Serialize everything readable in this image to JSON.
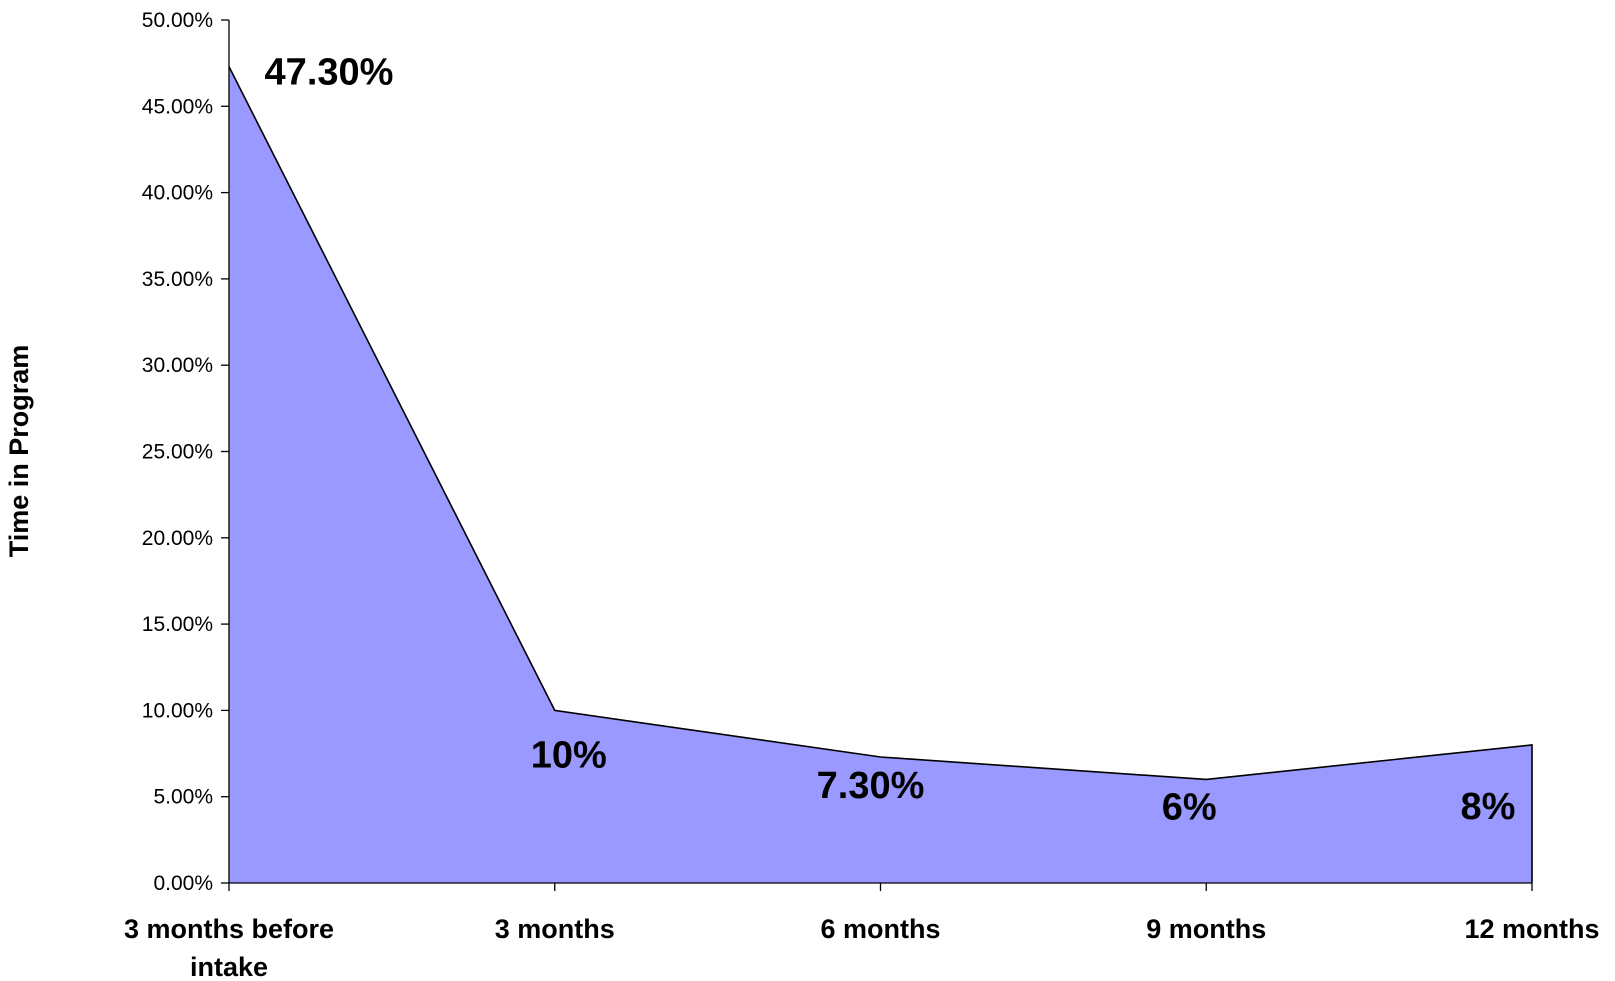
{
  "chart_data": {
    "type": "area",
    "title": "",
    "xlabel": "",
    "ylabel": "Time in Program",
    "ylim": [
      0,
      50
    ],
    "y_ticks": [
      "0.00%",
      "5.00%",
      "10.00%",
      "15.00%",
      "20.00%",
      "25.00%",
      "30.00%",
      "35.00%",
      "40.00%",
      "45.00%",
      "50.00%"
    ],
    "categories": [
      [
        "3 months before",
        "intake"
      ],
      [
        "3 months"
      ],
      [
        "6 months"
      ],
      [
        "9 months"
      ],
      [
        "12 months"
      ]
    ],
    "values": [
      47.3,
      10,
      7.3,
      6,
      8
    ],
    "data_labels": [
      "47.30%",
      "10%",
      "7.30%",
      "6%",
      "8%"
    ],
    "grid": false,
    "legend": "none",
    "fill_color": "#9999ff",
    "line_color": "#000000"
  }
}
